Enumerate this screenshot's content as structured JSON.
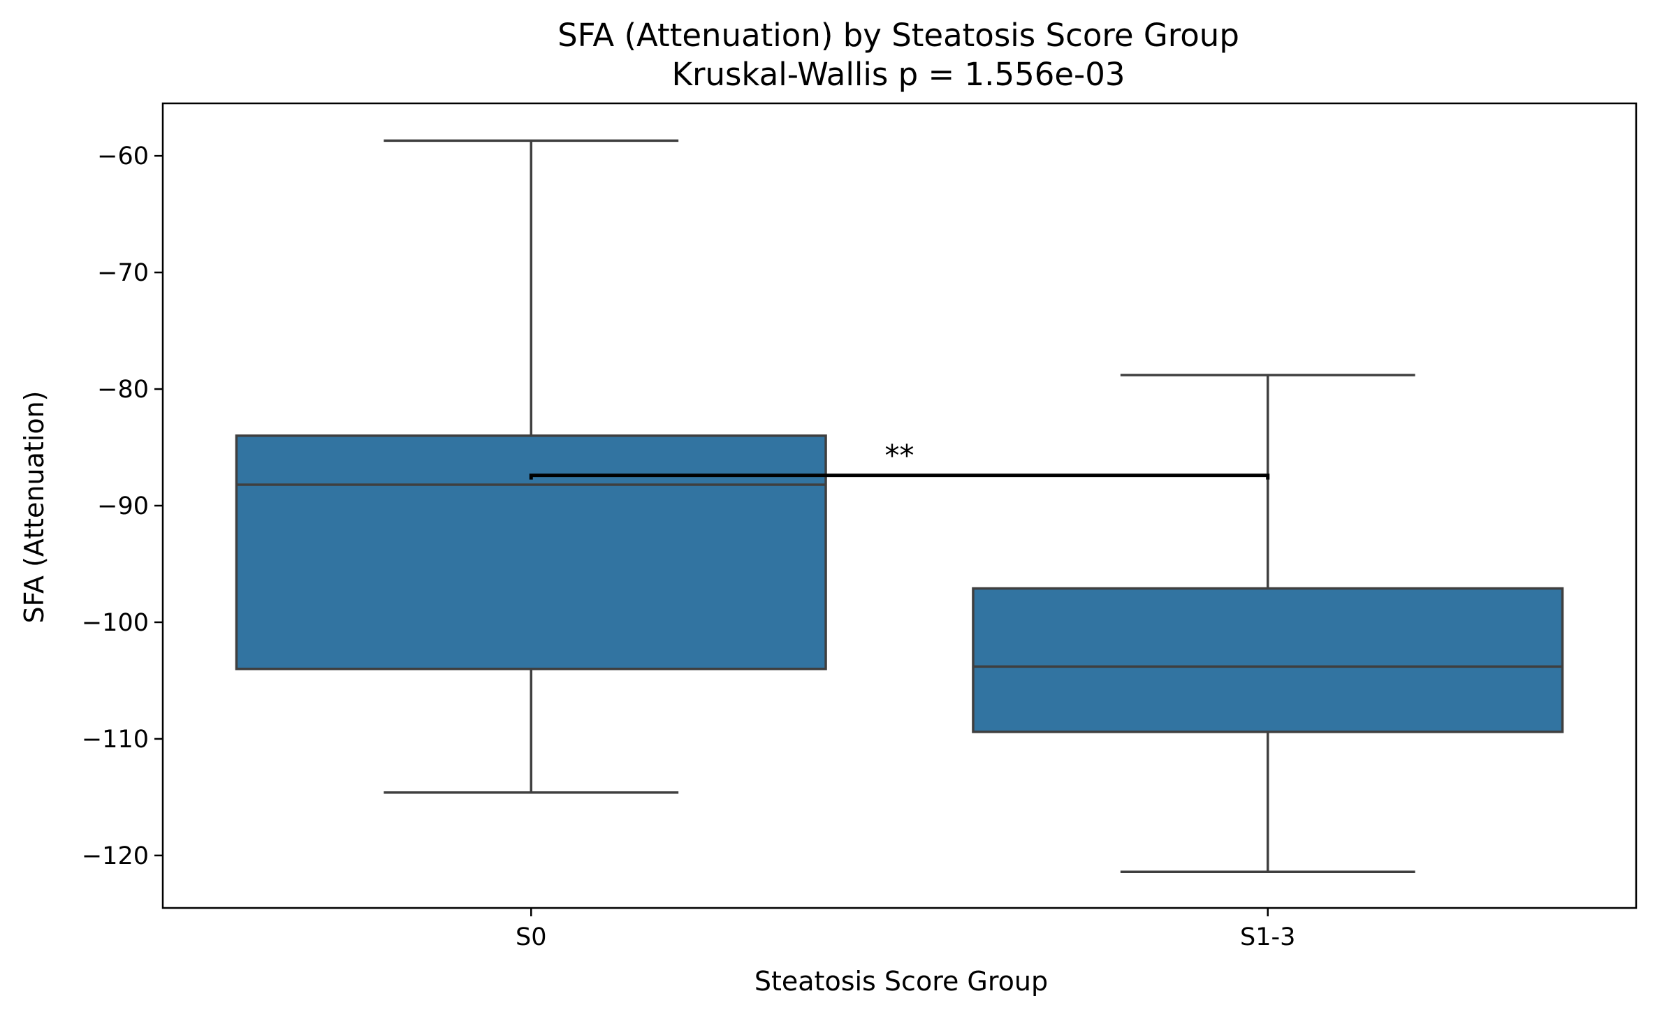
{
  "chart_data": {
    "type": "box",
    "title": "SFA (Attenuation) by Steatosis Score Group",
    "subtitle": "Kruskal-Wallis p = 1.556e-03",
    "xlabel": "Steatosis Score Group",
    "ylabel": "SFA (Attenuation)",
    "ylim": [
      -124.5,
      -55.5
    ],
    "yticks": [
      -120,
      -110,
      -100,
      -90,
      -80,
      -70,
      -60
    ],
    "ytick_labels": [
      "−120",
      "−110",
      "−100",
      "−90",
      "−80",
      "−70",
      "−60"
    ],
    "categories": [
      "S0",
      "S1-3"
    ],
    "boxes": [
      {
        "category": "S0",
        "whisker_low": -114.6,
        "q1": -104.0,
        "median": -88.2,
        "q3": -84.0,
        "whisker_high": -58.7
      },
      {
        "category": "S1-3",
        "whisker_low": -121.4,
        "q1": -109.4,
        "median": -103.8,
        "q3": -97.1,
        "whisker_high": -78.8
      }
    ],
    "significance": {
      "from": "S0",
      "to": "S1-3",
      "y": -87.4,
      "label": "**"
    },
    "grid": false,
    "colors": {
      "box_fill": "#3274a1",
      "box_edge": "#3f3f3f",
      "bracket": "#000000"
    }
  }
}
